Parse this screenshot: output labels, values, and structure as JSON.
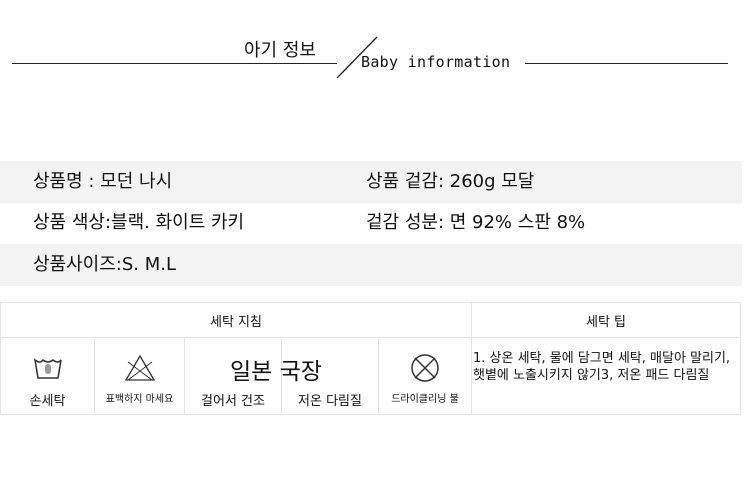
{
  "header": {
    "title_ko": "아기 정보",
    "title_en": "Baby information"
  },
  "info": {
    "name": "상품명 : 모던 나시",
    "weight": "상품 겉감: 260g 모달",
    "color": "상품 색상:블랙. 화이트 카키",
    "material": "겉감 성분: 면 92% 스판 8%",
    "size": "상품사이즈:S. M.L"
  },
  "care": {
    "guide_header": "세탁 지침",
    "tip_header": "세탁 팁",
    "items": [
      {
        "icon": "hand-wash-icon",
        "label": "손세탁"
      },
      {
        "icon": "no-bleach-icon",
        "label": "표백하지 마세요"
      },
      {
        "icon": "",
        "label": "걸어서 건조"
      },
      {
        "icon": "",
        "label": "저온 다림질"
      },
      {
        "icon": "no-dry-clean-icon",
        "label": "드라이클리닝 불"
      }
    ],
    "overlay": "일본 국장",
    "tip": "1. 상온 세탁, 물에 담그면 세탁, 매달아 말리기, 햇볕에 노출시키지 않기3, 저온 패드 다림질"
  }
}
